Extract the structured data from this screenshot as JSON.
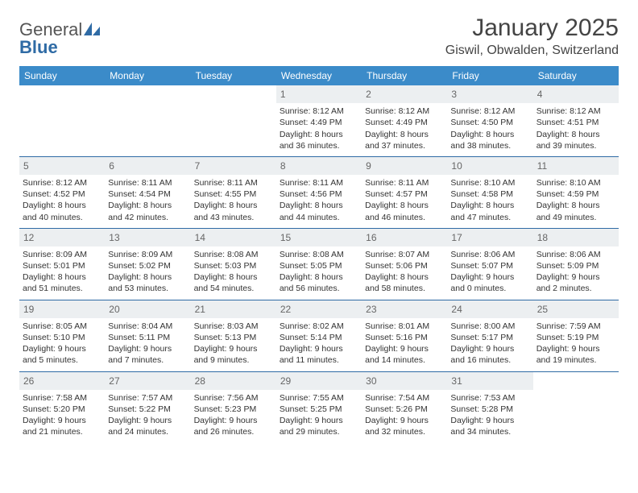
{
  "brand": {
    "part1": "General",
    "part2": "Blue"
  },
  "title": "January 2025",
  "location": "Giswil, Obwalden, Switzerland",
  "weekdays": [
    "Sunday",
    "Monday",
    "Tuesday",
    "Wednesday",
    "Thursday",
    "Friday",
    "Saturday"
  ],
  "colors": {
    "header_bar": "#3b8bc9",
    "daynum_bg": "#eceff1",
    "rule": "#2f6ba5",
    "brand_blue": "#2f6ba5"
  },
  "weeks": [
    [
      {
        "n": "",
        "empty": true
      },
      {
        "n": "",
        "empty": true
      },
      {
        "n": "",
        "empty": true
      },
      {
        "n": "1",
        "sr": "Sunrise: 8:12 AM",
        "ss": "Sunset: 4:49 PM",
        "d1": "Daylight: 8 hours",
        "d2": "and 36 minutes."
      },
      {
        "n": "2",
        "sr": "Sunrise: 8:12 AM",
        "ss": "Sunset: 4:49 PM",
        "d1": "Daylight: 8 hours",
        "d2": "and 37 minutes."
      },
      {
        "n": "3",
        "sr": "Sunrise: 8:12 AM",
        "ss": "Sunset: 4:50 PM",
        "d1": "Daylight: 8 hours",
        "d2": "and 38 minutes."
      },
      {
        "n": "4",
        "sr": "Sunrise: 8:12 AM",
        "ss": "Sunset: 4:51 PM",
        "d1": "Daylight: 8 hours",
        "d2": "and 39 minutes."
      }
    ],
    [
      {
        "n": "5",
        "sr": "Sunrise: 8:12 AM",
        "ss": "Sunset: 4:52 PM",
        "d1": "Daylight: 8 hours",
        "d2": "and 40 minutes."
      },
      {
        "n": "6",
        "sr": "Sunrise: 8:11 AM",
        "ss": "Sunset: 4:54 PM",
        "d1": "Daylight: 8 hours",
        "d2": "and 42 minutes."
      },
      {
        "n": "7",
        "sr": "Sunrise: 8:11 AM",
        "ss": "Sunset: 4:55 PM",
        "d1": "Daylight: 8 hours",
        "d2": "and 43 minutes."
      },
      {
        "n": "8",
        "sr": "Sunrise: 8:11 AM",
        "ss": "Sunset: 4:56 PM",
        "d1": "Daylight: 8 hours",
        "d2": "and 44 minutes."
      },
      {
        "n": "9",
        "sr": "Sunrise: 8:11 AM",
        "ss": "Sunset: 4:57 PM",
        "d1": "Daylight: 8 hours",
        "d2": "and 46 minutes."
      },
      {
        "n": "10",
        "sr": "Sunrise: 8:10 AM",
        "ss": "Sunset: 4:58 PM",
        "d1": "Daylight: 8 hours",
        "d2": "and 47 minutes."
      },
      {
        "n": "11",
        "sr": "Sunrise: 8:10 AM",
        "ss": "Sunset: 4:59 PM",
        "d1": "Daylight: 8 hours",
        "d2": "and 49 minutes."
      }
    ],
    [
      {
        "n": "12",
        "sr": "Sunrise: 8:09 AM",
        "ss": "Sunset: 5:01 PM",
        "d1": "Daylight: 8 hours",
        "d2": "and 51 minutes."
      },
      {
        "n": "13",
        "sr": "Sunrise: 8:09 AM",
        "ss": "Sunset: 5:02 PM",
        "d1": "Daylight: 8 hours",
        "d2": "and 53 minutes."
      },
      {
        "n": "14",
        "sr": "Sunrise: 8:08 AM",
        "ss": "Sunset: 5:03 PM",
        "d1": "Daylight: 8 hours",
        "d2": "and 54 minutes."
      },
      {
        "n": "15",
        "sr": "Sunrise: 8:08 AM",
        "ss": "Sunset: 5:05 PM",
        "d1": "Daylight: 8 hours",
        "d2": "and 56 minutes."
      },
      {
        "n": "16",
        "sr": "Sunrise: 8:07 AM",
        "ss": "Sunset: 5:06 PM",
        "d1": "Daylight: 8 hours",
        "d2": "and 58 minutes."
      },
      {
        "n": "17",
        "sr": "Sunrise: 8:06 AM",
        "ss": "Sunset: 5:07 PM",
        "d1": "Daylight: 9 hours",
        "d2": "and 0 minutes."
      },
      {
        "n": "18",
        "sr": "Sunrise: 8:06 AM",
        "ss": "Sunset: 5:09 PM",
        "d1": "Daylight: 9 hours",
        "d2": "and 2 minutes."
      }
    ],
    [
      {
        "n": "19",
        "sr": "Sunrise: 8:05 AM",
        "ss": "Sunset: 5:10 PM",
        "d1": "Daylight: 9 hours",
        "d2": "and 5 minutes."
      },
      {
        "n": "20",
        "sr": "Sunrise: 8:04 AM",
        "ss": "Sunset: 5:11 PM",
        "d1": "Daylight: 9 hours",
        "d2": "and 7 minutes."
      },
      {
        "n": "21",
        "sr": "Sunrise: 8:03 AM",
        "ss": "Sunset: 5:13 PM",
        "d1": "Daylight: 9 hours",
        "d2": "and 9 minutes."
      },
      {
        "n": "22",
        "sr": "Sunrise: 8:02 AM",
        "ss": "Sunset: 5:14 PM",
        "d1": "Daylight: 9 hours",
        "d2": "and 11 minutes."
      },
      {
        "n": "23",
        "sr": "Sunrise: 8:01 AM",
        "ss": "Sunset: 5:16 PM",
        "d1": "Daylight: 9 hours",
        "d2": "and 14 minutes."
      },
      {
        "n": "24",
        "sr": "Sunrise: 8:00 AM",
        "ss": "Sunset: 5:17 PM",
        "d1": "Daylight: 9 hours",
        "d2": "and 16 minutes."
      },
      {
        "n": "25",
        "sr": "Sunrise: 7:59 AM",
        "ss": "Sunset: 5:19 PM",
        "d1": "Daylight: 9 hours",
        "d2": "and 19 minutes."
      }
    ],
    [
      {
        "n": "26",
        "sr": "Sunrise: 7:58 AM",
        "ss": "Sunset: 5:20 PM",
        "d1": "Daylight: 9 hours",
        "d2": "and 21 minutes."
      },
      {
        "n": "27",
        "sr": "Sunrise: 7:57 AM",
        "ss": "Sunset: 5:22 PM",
        "d1": "Daylight: 9 hours",
        "d2": "and 24 minutes."
      },
      {
        "n": "28",
        "sr": "Sunrise: 7:56 AM",
        "ss": "Sunset: 5:23 PM",
        "d1": "Daylight: 9 hours",
        "d2": "and 26 minutes."
      },
      {
        "n": "29",
        "sr": "Sunrise: 7:55 AM",
        "ss": "Sunset: 5:25 PM",
        "d1": "Daylight: 9 hours",
        "d2": "and 29 minutes."
      },
      {
        "n": "30",
        "sr": "Sunrise: 7:54 AM",
        "ss": "Sunset: 5:26 PM",
        "d1": "Daylight: 9 hours",
        "d2": "and 32 minutes."
      },
      {
        "n": "31",
        "sr": "Sunrise: 7:53 AM",
        "ss": "Sunset: 5:28 PM",
        "d1": "Daylight: 9 hours",
        "d2": "and 34 minutes."
      },
      {
        "n": "",
        "empty": true
      }
    ]
  ]
}
